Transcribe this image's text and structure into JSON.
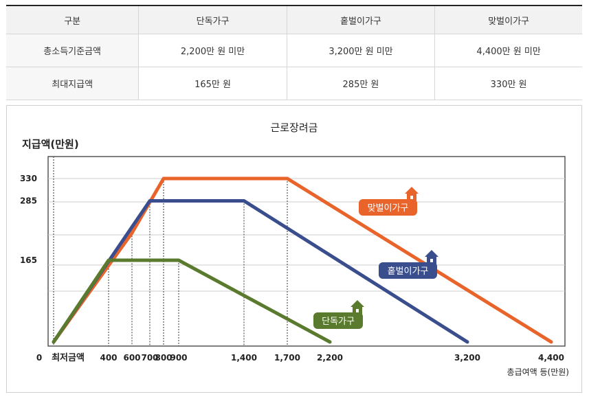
{
  "table": {
    "headers": [
      "구분",
      "단독가구",
      "홑벌이가구",
      "맞벌이가구"
    ],
    "rows": [
      [
        "총소득기준금액",
        "2,200만 원 미만",
        "3,200만 원 미만",
        "4,400만 원 미만"
      ],
      [
        "최대지급액",
        "165만 원",
        "285만 원",
        "330만 원"
      ]
    ]
  },
  "chart_data": {
    "type": "line",
    "title": "근로장려금",
    "ylabel": "지급액(만원)",
    "xlabel": "총급여액 등(만원)",
    "origin_label": "0",
    "min_wage_label": "최저금액",
    "x_ticks": [
      400,
      600,
      700,
      800,
      900,
      1400,
      1700,
      2200,
      3200,
      4400
    ],
    "x_tick_labels": [
      "400",
      "600",
      "700",
      "800",
      "900",
      "1,400",
      "1,700",
      "2,200",
      "3,200",
      "4,400"
    ],
    "y_ticks": [
      165,
      285,
      330
    ],
    "y_tick_labels": [
      "165",
      "285",
      "330"
    ],
    "series": [
      {
        "name": "맞벌이가구",
        "color": "#e8642a",
        "points": [
          [
            0,
            0
          ],
          [
            600,
            220
          ],
          [
            800,
            330
          ],
          [
            1700,
            330
          ],
          [
            4400,
            0
          ]
        ]
      },
      {
        "name": "홑벌이가구",
        "color": "#3a4e8e",
        "points": [
          [
            0,
            0
          ],
          [
            700,
            285
          ],
          [
            1400,
            285
          ],
          [
            3200,
            0
          ]
        ]
      },
      {
        "name": "단독가구",
        "color": "#5a7a2e",
        "points": [
          [
            0,
            0
          ],
          [
            400,
            165
          ],
          [
            900,
            165
          ],
          [
            2200,
            0
          ]
        ]
      }
    ],
    "grid": true
  }
}
